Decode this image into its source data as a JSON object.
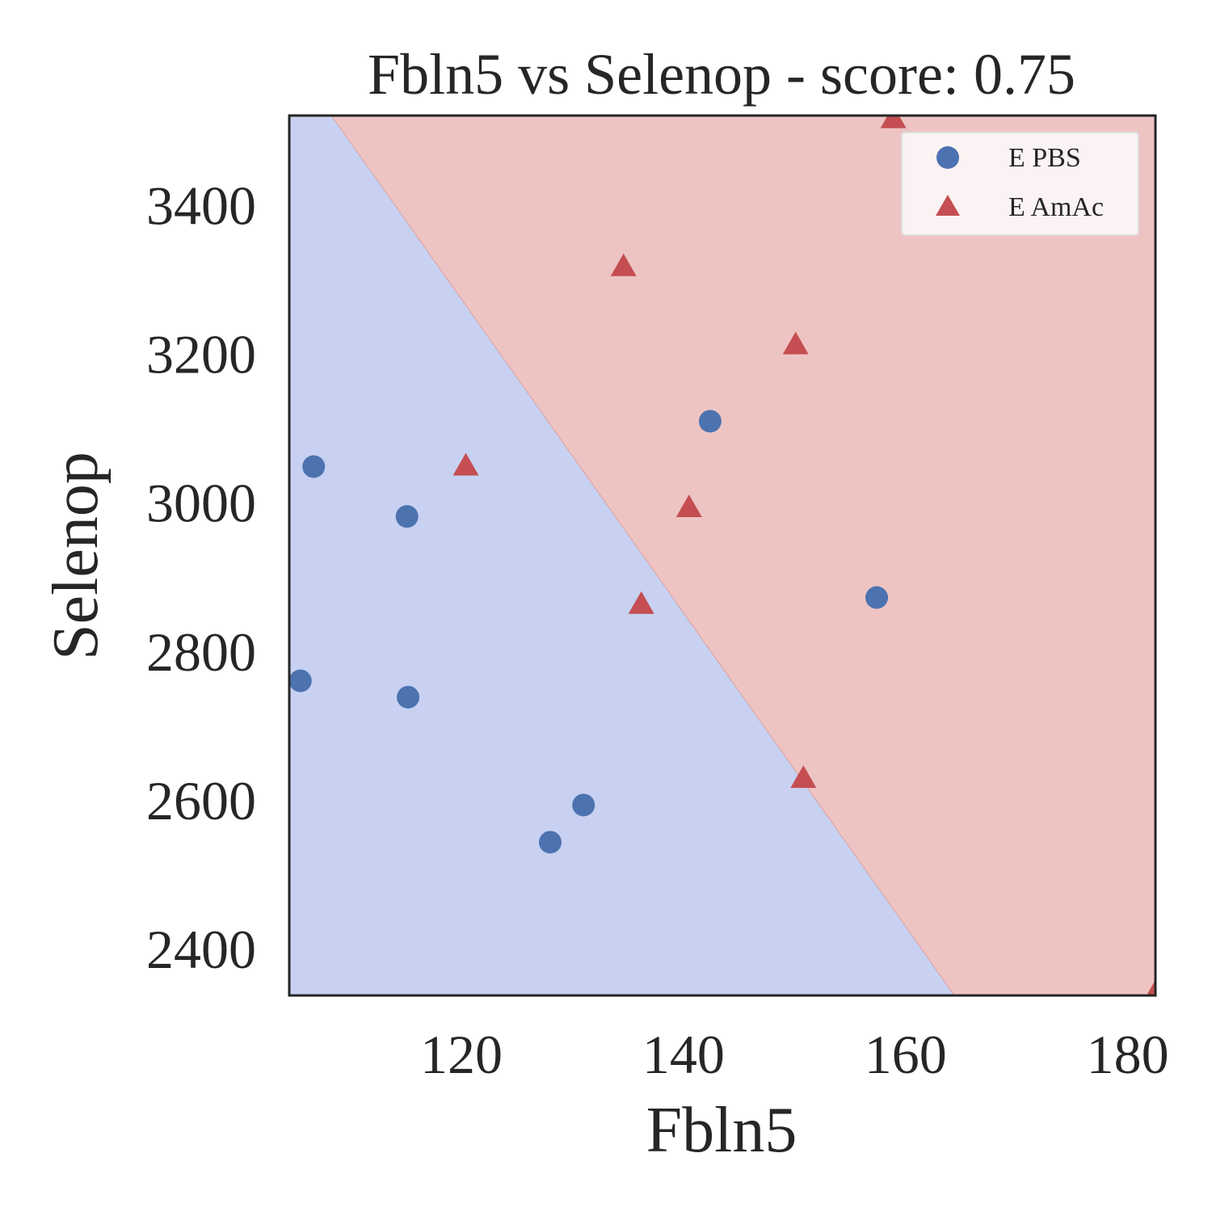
{
  "chart_data": {
    "type": "scatter",
    "title": "Fbln5 vs Selenop - score: 0.75",
    "xlabel": "Fbln5",
    "ylabel": "Selenop",
    "xlim": [
      104.5,
      182.5
    ],
    "ylim": [
      2337,
      3520
    ],
    "xticks": [
      120,
      140,
      160,
      180
    ],
    "yticks": [
      2400,
      2600,
      2800,
      3000,
      3200,
      3400
    ],
    "grid": false,
    "legend_position": "top-right",
    "decision_boundary": {
      "points": [
        [
          108.3,
          3520
        ],
        [
          164.4,
          2337
        ]
      ],
      "region_colors": {
        "E PBS": "#c8d1f1",
        "E AmAc": "#eec4c3"
      }
    },
    "series": [
      {
        "name": "E PBS",
        "marker": "circle",
        "color": "#4c72b0",
        "points": [
          [
            106.7,
            3048
          ],
          [
            115.1,
            2981
          ],
          [
            105.5,
            2760
          ],
          [
            115.2,
            2738
          ],
          [
            128.0,
            2543
          ],
          [
            131.0,
            2593
          ],
          [
            142.4,
            3109
          ],
          [
            157.4,
            2872
          ]
        ]
      },
      {
        "name": "E AmAc",
        "marker": "triangle",
        "color": "#c44e52",
        "points": [
          [
            120.4,
            3048
          ],
          [
            134.6,
            3316
          ],
          [
            136.2,
            2862
          ],
          [
            140.5,
            2992
          ],
          [
            150.1,
            3211
          ],
          [
            150.8,
            2628
          ],
          [
            158.9,
            3515
          ],
          [
            182.4,
            2337
          ]
        ]
      }
    ]
  }
}
